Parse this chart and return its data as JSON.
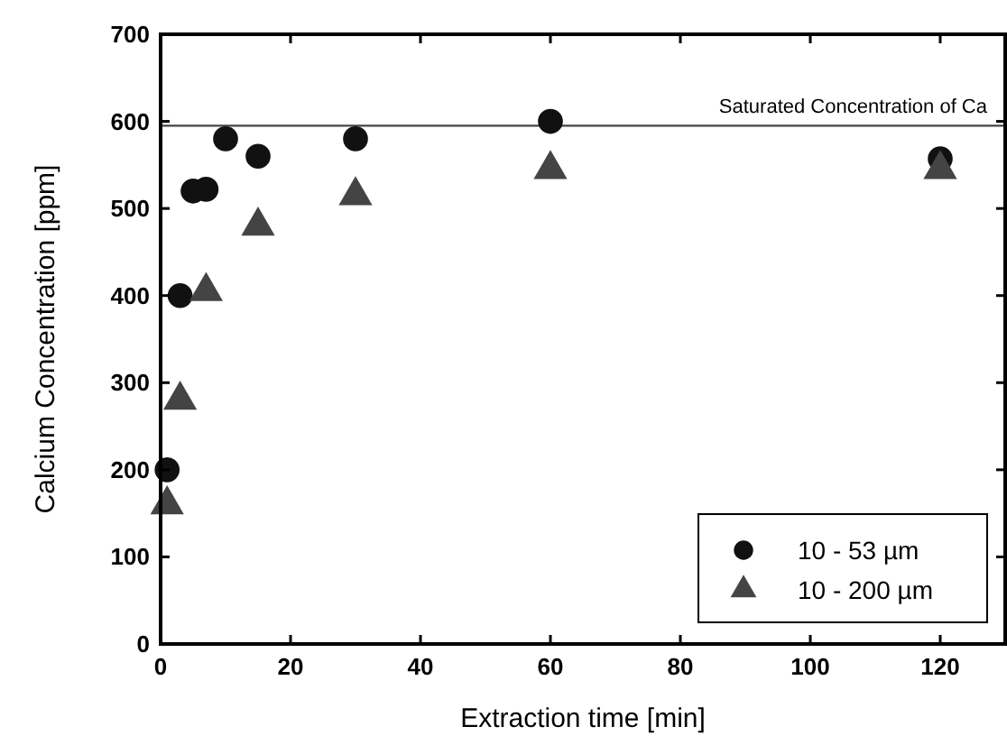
{
  "chart_data": {
    "type": "scatter",
    "xlabel": "Extraction time [min]",
    "ylabel": "Calcium Concentration [ppm]",
    "xlim": [
      0,
      130
    ],
    "xticks": [
      0,
      20,
      40,
      60,
      80,
      100,
      120
    ],
    "ylim": [
      0,
      700
    ],
    "yticks": [
      0,
      100,
      200,
      300,
      400,
      500,
      600,
      700
    ],
    "series": [
      {
        "name": "10 - 53 µm",
        "color": "#111111",
        "marker": "circle",
        "x": [
          1,
          3,
          5,
          7,
          10,
          15,
          30,
          60,
          120
        ],
        "values": [
          200,
          400,
          520,
          522,
          580,
          560,
          580,
          600,
          557
        ]
      },
      {
        "name": "10 - 200 µm",
        "color": "#444444",
        "marker": "triangle",
        "x": [
          1,
          3,
          7,
          15,
          30,
          60,
          120
        ],
        "values": [
          160,
          280,
          405,
          480,
          515,
          545,
          545
        ]
      }
    ],
    "ref_lines": [
      {
        "axis": "y",
        "value": 595,
        "label": "Saturated Concentration of Ca",
        "color": "#444444"
      }
    ],
    "legend": "bottom right",
    "grid": false
  }
}
